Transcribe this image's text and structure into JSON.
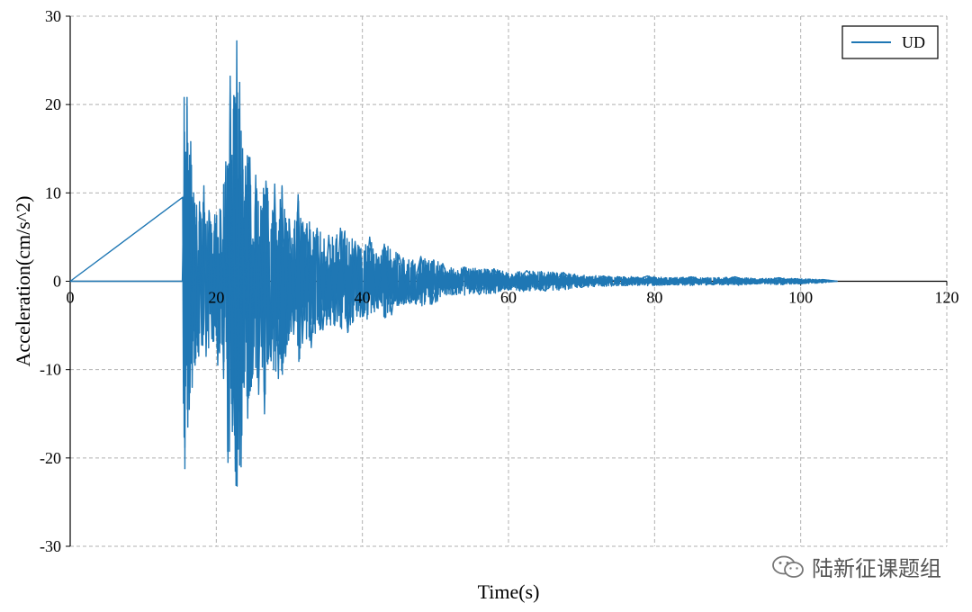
{
  "chart_data": {
    "type": "line",
    "title": "",
    "xlabel": "Time(s)",
    "ylabel": "Acceleration(cm/s^2)",
    "xlim": [
      0,
      120
    ],
    "ylim": [
      -30,
      30
    ],
    "xticks": [
      0,
      20,
      40,
      60,
      80,
      100,
      120
    ],
    "xtick_labels": [
      "0",
      "20",
      "40",
      "60",
      "80",
      "100",
      "120"
    ],
    "yticks": [
      -30,
      -20,
      -10,
      0,
      10,
      20,
      30
    ],
    "ytick_labels": [
      "-30",
      "-20",
      "-10",
      "0",
      "10",
      "20",
      "30"
    ],
    "grid": true,
    "legend_position": "top-right",
    "series": [
      {
        "name": "UD",
        "color": "#1f77b4",
        "x": [
          0,
          15.4,
          15.5,
          15.6,
          15.7,
          15.8,
          15.9,
          16.0,
          16.1,
          16.2,
          16.3,
          16.5,
          16.7,
          16.9,
          17.1,
          17.3,
          17.5,
          17.7,
          18.0,
          18.3,
          18.6,
          19.0,
          19.4,
          19.8,
          20.2,
          20.6,
          21.0,
          21.3,
          21.6,
          21.9,
          22.2,
          22.4,
          22.6,
          22.8,
          23.0,
          23.2,
          23.4,
          23.6,
          23.8,
          24.0,
          24.3,
          24.6,
          25.0,
          25.4,
          25.8,
          26.2,
          26.6,
          27.0,
          27.5,
          28.0,
          28.5,
          29.0,
          29.5,
          30.0,
          30.6,
          31.2,
          31.8,
          32.4,
          33.0,
          33.8,
          34.6,
          35.4,
          36.2,
          37.0,
          38.0,
          39.0,
          40.0,
          41.0,
          42.0,
          43.0,
          44.0,
          45.0,
          46.5,
          48.0,
          49.5,
          51.0,
          52.5,
          54.0,
          56.0,
          58.0,
          60.0,
          62.5,
          65.0,
          67.5,
          70.0,
          73.0,
          76.0,
          79.0,
          82.0,
          85.0,
          88.0,
          91.0,
          94.0,
          97.0,
          100.0,
          103.0,
          105.0
        ],
        "values": [
          0,
          9.5,
          -13.8,
          20.8,
          -21.2,
          14.6,
          -9.5,
          20.8,
          -16.5,
          12.5,
          -14.5,
          15.8,
          -12.0,
          10.0,
          -9.5,
          8.6,
          -8.0,
          9.0,
          -7.2,
          10.8,
          -8.5,
          8.0,
          -6.5,
          7.5,
          -9.5,
          8.0,
          -11.0,
          13.5,
          -20.5,
          23.2,
          -17.0,
          21.0,
          -21.5,
          27.2,
          -19.0,
          22.5,
          -21.0,
          15.0,
          -12.0,
          13.0,
          -15.5,
          14.0,
          -10.5,
          12.0,
          -12.8,
          8.0,
          -15.0,
          10.5,
          -9.0,
          11.0,
          -11.0,
          10.8,
          -8.5,
          7.0,
          -6.0,
          9.8,
          -7.0,
          6.5,
          -7.5,
          6.0,
          -5.5,
          5.2,
          -5.0,
          6.0,
          -5.8,
          4.5,
          -4.0,
          5.0,
          -3.0,
          4.2,
          -3.8,
          3.0,
          -2.5,
          2.8,
          -2.6,
          2.0,
          -1.5,
          1.6,
          -1.5,
          1.4,
          -1.0,
          1.2,
          -1.1,
          1.0,
          -0.7,
          0.6,
          -0.5,
          0.6,
          -0.4,
          0.5,
          -0.4,
          0.5,
          -0.3,
          0.4,
          -0.3,
          0.2,
          0
        ]
      }
    ]
  },
  "watermark": {
    "text": "陆新征课题组",
    "icon": "wechat-icon"
  }
}
